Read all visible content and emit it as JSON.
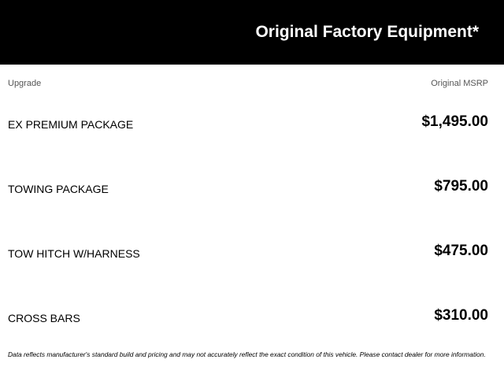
{
  "header": {
    "title": "Original Factory Equipment*"
  },
  "columns": {
    "upgrade": "Upgrade",
    "msrp": "Original MSRP"
  },
  "items": [
    {
      "name": "EX PREMIUM PACKAGE",
      "price": "$1,495.00"
    },
    {
      "name": "TOWING PACKAGE",
      "price": "$795.00"
    },
    {
      "name": "TOW HITCH W/HARNESS",
      "price": "$475.00"
    },
    {
      "name": "CROSS BARS",
      "price": "$310.00"
    }
  ],
  "footnote": "Data reflects manufacturer's standard build and pricing and may not accurately reflect the exact condition of this vehicle. Please contact dealer for more information."
}
